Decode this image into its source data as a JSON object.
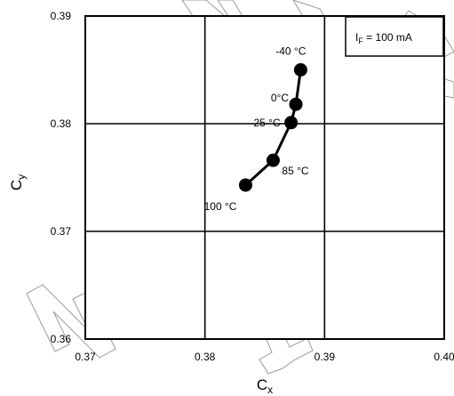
{
  "chart_data": {
    "type": "scatter",
    "xlabel": "C",
    "xlabel_sub": "x",
    "ylabel": "C",
    "ylabel_sub": "y",
    "xlim": [
      0.37,
      0.4
    ],
    "ylim": [
      0.36,
      0.39
    ],
    "x_ticks": [
      "0.37",
      "0.38",
      "0.39",
      "0.40"
    ],
    "y_ticks": [
      "0.36",
      "0.37",
      "0.38",
      "0.39"
    ],
    "grid": true,
    "legend": {
      "position": "top-right",
      "prefix": "I",
      "subscript": "F",
      "suffix": " = 100 mA"
    },
    "series": [
      {
        "x": [
          0.388,
          0.3876,
          0.3872,
          0.3857,
          0.3834
        ],
        "y": [
          0.385,
          0.3818,
          0.3801,
          0.3766,
          0.3743
        ],
        "labels": [
          "-40 °C",
          "0°C",
          "25 °C",
          "85 °C",
          "100 °C"
        ]
      }
    ],
    "watermark": "Not for New Design"
  }
}
